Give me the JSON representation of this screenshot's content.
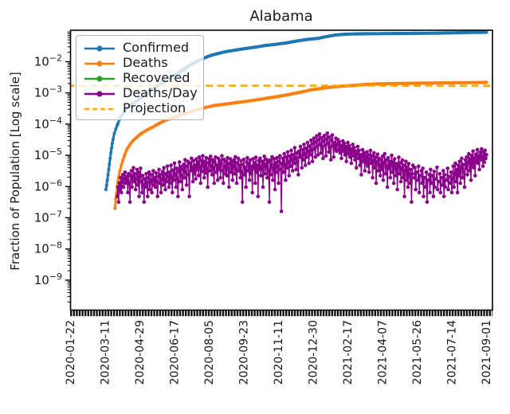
{
  "chart_data": {
    "type": "line",
    "title": "Alabama",
    "ylabel": "Fraction of Population [Log scale]",
    "xlabel": "",
    "yscale": "log",
    "ylim": [
      1.1e-10,
      0.099
    ],
    "grid": false,
    "legend_position": "upper left",
    "x_tick_interval_days": 49,
    "x_tick_labels": [
      "2020-01-22",
      "2020-03-11",
      "2020-04-29",
      "2020-06-17",
      "2020-08-05",
      "2020-09-23",
      "2020-11-11",
      "2020-12-30",
      "2021-02-17",
      "2021-04-07",
      "2021-05-26",
      "2021-07-14",
      "2021-09-01"
    ],
    "y_tick_exponents": [
      -2,
      -3,
      -4,
      -5,
      -6,
      -7,
      -8,
      -9
    ],
    "series": [
      {
        "name": "Confirmed",
        "color": "#1f77b4",
        "line": "solid",
        "marker": "circle",
        "points": [
          [
            50,
            8e-07
          ],
          [
            51,
            1.1e-06
          ],
          [
            52,
            1.6e-06
          ],
          [
            53,
            2.4e-06
          ],
          [
            54,
            3.5e-06
          ],
          [
            55,
            5.2e-06
          ],
          [
            56,
            8e-06
          ],
          [
            57,
            1.2e-05
          ],
          [
            58,
            1.7e-05
          ],
          [
            59,
            2.4e-05
          ],
          [
            60,
            3.2e-05
          ],
          [
            62,
            5e-05
          ],
          [
            64,
            7e-05
          ],
          [
            67,
            0.000105
          ],
          [
            70,
            0.00016
          ],
          [
            74,
            0.00022
          ],
          [
            80,
            0.00032
          ],
          [
            88,
            0.00045
          ],
          [
            96,
            0.0006
          ],
          [
            105,
            0.00085
          ],
          [
            115,
            0.00125
          ],
          [
            125,
            0.0018
          ],
          [
            135,
            0.0025
          ],
          [
            145,
            0.0034
          ],
          [
            155,
            0.0048
          ],
          [
            165,
            0.0068
          ],
          [
            175,
            0.0092
          ],
          [
            185,
            0.012
          ],
          [
            195,
            0.015
          ],
          [
            205,
            0.0175
          ],
          [
            215,
            0.02
          ],
          [
            230,
            0.023
          ],
          [
            245,
            0.026
          ],
          [
            260,
            0.029
          ],
          [
            275,
            0.033
          ],
          [
            290,
            0.036
          ],
          [
            305,
            0.04
          ],
          [
            320,
            0.046
          ],
          [
            335,
            0.052
          ],
          [
            350,
            0.056
          ],
          [
            362,
            0.064
          ],
          [
            375,
            0.072
          ],
          [
            388,
            0.076
          ],
          [
            405,
            0.078
          ],
          [
            430,
            0.079
          ],
          [
            460,
            0.08
          ],
          [
            490,
            0.081
          ],
          [
            515,
            0.082
          ],
          [
            540,
            0.084
          ],
          [
            560,
            0.086
          ],
          [
            575,
            0.087
          ],
          [
            588,
            0.088
          ]
        ]
      },
      {
        "name": "Deaths",
        "color": "#ff7f0e",
        "line": "solid",
        "marker": "circle",
        "points": [
          [
            63,
            2e-07
          ],
          [
            64,
            4e-07
          ],
          [
            65,
            6e-07
          ],
          [
            66,
            1e-06
          ],
          [
            67,
            1.4e-06
          ],
          [
            68,
            2e-06
          ],
          [
            70,
            3.3e-06
          ],
          [
            72,
            5e-06
          ],
          [
            74,
            7e-06
          ],
          [
            77,
            1.1e-05
          ],
          [
            80,
            1.6e-05
          ],
          [
            84,
            2.2e-05
          ],
          [
            88,
            2.9e-05
          ],
          [
            93,
            3.7e-05
          ],
          [
            100,
            5e-05
          ],
          [
            108,
            6.5e-05
          ],
          [
            116,
            8e-05
          ],
          [
            125,
            0.000105
          ],
          [
            135,
            0.000135
          ],
          [
            145,
            0.00016
          ],
          [
            155,
            0.00019
          ],
          [
            165,
            0.00023
          ],
          [
            175,
            0.00027
          ],
          [
            190,
            0.00034
          ],
          [
            205,
            0.0004
          ],
          [
            220,
            0.00044
          ],
          [
            235,
            0.00049
          ],
          [
            250,
            0.00054
          ],
          [
            265,
            0.00061
          ],
          [
            280,
            0.00069
          ],
          [
            295,
            0.00078
          ],
          [
            310,
            0.0009
          ],
          [
            325,
            0.00105
          ],
          [
            340,
            0.00125
          ],
          [
            355,
            0.0014
          ],
          [
            370,
            0.00155
          ],
          [
            385,
            0.00165
          ],
          [
            398,
            0.00172
          ],
          [
            415,
            0.00185
          ],
          [
            435,
            0.00195
          ],
          [
            460,
            0.002
          ],
          [
            490,
            0.00205
          ],
          [
            530,
            0.0021
          ],
          [
            565,
            0.00214
          ],
          [
            588,
            0.00218
          ]
        ]
      },
      {
        "name": "Recovered",
        "color": "#2ca02c",
        "line": "solid",
        "marker": "circle",
        "points": []
      },
      {
        "name": "Deaths/Day",
        "color": "#8b008b",
        "line": "solid",
        "marker": "circle",
        "daily": {
          "start_day": 66,
          "unit_fraction": 1.6e-07,
          "counts": [
            3,
            6,
            2,
            8,
            5,
            12,
            4,
            9,
            15,
            6,
            11,
            18,
            8,
            13,
            10,
            4,
            16,
            8,
            2,
            14,
            20,
            6,
            12,
            25,
            9,
            16,
            5,
            11,
            22,
            7,
            18,
            3,
            13,
            24,
            9,
            4,
            14,
            7,
            2,
            11,
            6,
            16,
            8,
            3,
            12,
            18,
            5,
            9,
            15,
            4,
            10,
            20,
            7,
            12,
            6,
            17,
            9,
            3,
            13,
            22,
            8,
            15,
            4,
            11,
            19,
            7,
            25,
            10,
            5,
            16,
            9,
            28,
            13,
            6,
            18,
            8,
            30,
            12,
            4,
            21,
            10,
            35,
            15,
            6,
            24,
            11,
            3,
            19,
            38,
            9,
            27,
            14,
            5,
            22,
            32,
            12,
            45,
            18,
            7,
            28,
            40,
            15,
            3,
            35,
            20,
            50,
            25,
            9,
            42,
            16,
            30,
            11,
            48,
            22,
            38,
            14,
            55,
            26,
            8,
            44,
            19,
            60,
            30,
            12,
            40,
            17,
            52,
            24,
            6,
            36,
            48,
            20,
            58,
            28,
            15,
            45,
            25,
            8,
            38,
            55,
            18,
            30,
            10,
            50,
            22,
            42,
            12,
            35,
            60,
            20,
            8,
            46,
            28,
            16,
            40,
            14,
            52,
            24,
            6,
            34,
            48,
            18,
            38,
            10,
            28,
            44,
            16,
            56,
            22,
            8,
            36,
            50,
            20,
            30,
            12,
            42,
            18,
            2,
            32,
            46,
            15,
            26,
            6,
            38,
            52,
            20,
            34,
            10,
            44,
            16,
            28,
            4,
            48,
            24,
            36,
            8,
            54,
            18,
            30,
            3,
            42,
            22,
            50,
            14,
            26,
            40,
            6,
            34,
            58,
            16,
            28,
            46,
            12,
            38,
            20,
            2,
            44,
            15,
            32,
            56,
            10,
            24,
            48,
            5,
            36,
            18,
            52,
            28,
            8,
            40,
            60,
            22,
            1,
            34,
            50,
            18,
            70,
            30,
            10,
            55,
            25,
            80,
            38,
            14,
            60,
            28,
            90,
            45,
            20,
            65,
            35,
            110,
            50,
            22,
            75,
            40,
            15,
            85,
            55,
            120,
            60,
            25,
            95,
            45,
            140,
            70,
            30,
            105,
            55,
            160,
            80,
            35,
            125,
            65,
            190,
            90,
            40,
            150,
            220,
            100,
            55,
            170,
            260,
            120,
            65,
            200,
            300,
            140,
            75,
            230,
            110,
            50,
            180,
            270,
            130,
            60,
            210,
            320,
            150,
            80,
            240,
            110,
            45,
            190,
            280,
            125,
            55,
            160,
            100,
            220,
            85,
            140,
            200,
            95,
            170,
            75,
            130,
            50,
            110,
            180,
            85,
            150,
            65,
            120,
            40,
            95,
            160,
            70,
            125,
            55,
            100,
            35,
            80,
            140,
            60,
            110,
            45,
            85,
            25,
            70,
            120,
            50,
            90,
            30,
            65,
            15,
            55,
            95,
            40,
            75,
            20,
            60,
            35,
            80,
            28,
            65,
            18,
            48,
            90,
            35,
            60,
            12,
            42,
            75,
            25,
            55,
            8,
            38,
            68,
            20,
            50,
            30,
            14,
            45,
            22,
            58,
            10,
            36,
            70,
            16,
            44,
            28,
            6,
            52,
            24,
            40,
            12,
            32,
            62,
            18,
            38,
            8,
            48,
            26,
            14,
            34,
            5,
            28,
            54,
            16,
            36,
            9,
            24,
            44,
            12,
            30,
            3,
            20,
            40,
            10,
            26,
            6,
            34,
            15,
            8,
            22,
            2,
            16,
            30,
            0,
            12,
            25,
            5,
            18,
            0,
            10,
            28,
            4,
            14,
            0,
            20,
            8,
            24,
            3,
            12,
            0,
            6,
            18,
            2,
            10,
            0,
            15,
            4,
            22,
            8,
            0,
            14,
            3,
            19,
            6,
            0,
            11,
            26,
            5,
            9,
            0,
            16,
            4,
            12,
            0,
            7,
            20,
            3,
            15,
            6,
            0,
            10,
            24,
            5,
            13,
            0,
            8,
            18,
            4,
            11,
            28,
            6,
            16,
            35,
            9,
            22,
            4,
            30,
            14,
            40,
            8,
            25,
            50,
            12,
            32,
            18,
            6,
            45,
            24,
            55,
            15,
            38,
            70,
            20,
            48,
            10,
            62,
            30,
            85,
            25,
            52,
            14,
            68,
            40,
            95,
            35,
            60,
            22,
            78,
            45,
            100,
            55,
            28,
            80,
            38,
            90,
            50,
            65
          ]
        }
      },
      {
        "name": "Projection",
        "color": "#ffa500",
        "line": "dashed",
        "marker": "none",
        "constant_value": 0.0017,
        "span_days": [
          -5,
          597
        ]
      }
    ]
  }
}
